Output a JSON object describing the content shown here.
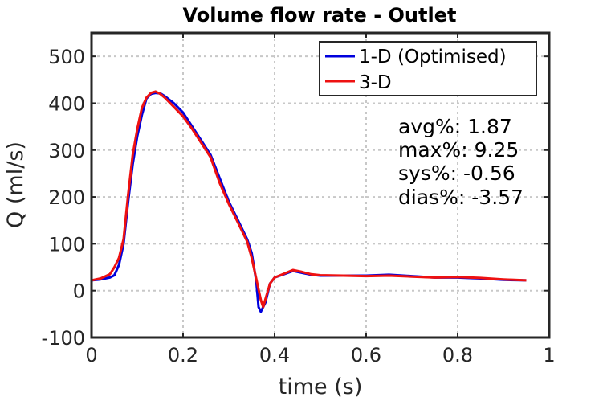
{
  "chart_data": {
    "type": "line",
    "title": "Volume flow rate - Outlet",
    "xlabel": "time (s)",
    "ylabel": "Q (ml/s)",
    "xlim": [
      0,
      1
    ],
    "ylim": [
      -100,
      550
    ],
    "xticks": [
      0,
      0.2,
      0.4,
      0.6,
      0.8,
      1
    ],
    "xtick_labels": [
      "0",
      "0.2",
      "0.4",
      "0.6",
      "0.8",
      "1"
    ],
    "yticks": [
      -100,
      0,
      100,
      200,
      300,
      400,
      500
    ],
    "ytick_labels": [
      "-100",
      "0",
      "100",
      "200",
      "300",
      "400",
      "500"
    ],
    "grid": true,
    "legend_position": "top-right",
    "series": [
      {
        "name": "1-D (Optimised)",
        "color": "#0000dd",
        "x": [
          0,
          0.02,
          0.04,
          0.05,
          0.06,
          0.07,
          0.08,
          0.09,
          0.1,
          0.11,
          0.12,
          0.13,
          0.14,
          0.15,
          0.16,
          0.18,
          0.2,
          0.22,
          0.24,
          0.26,
          0.28,
          0.3,
          0.32,
          0.34,
          0.35,
          0.36,
          0.365,
          0.37,
          0.38,
          0.39,
          0.4,
          0.42,
          0.44,
          0.46,
          0.48,
          0.5,
          0.55,
          0.6,
          0.65,
          0.7,
          0.75,
          0.8,
          0.85,
          0.9,
          0.95
        ],
        "y": [
          22,
          24,
          28,
          33,
          55,
          100,
          190,
          270,
          330,
          375,
          410,
          420,
          422,
          421,
          415,
          400,
          380,
          350,
          320,
          290,
          240,
          190,
          150,
          110,
          80,
          20,
          -35,
          -45,
          -25,
          15,
          28,
          35,
          42,
          38,
          34,
          32,
          32,
          32,
          34,
          31,
          28,
          28,
          26,
          23,
          22
        ]
      },
      {
        "name": "3-D",
        "color": "#ee1111",
        "x": [
          0,
          0.02,
          0.04,
          0.05,
          0.06,
          0.07,
          0.08,
          0.09,
          0.1,
          0.11,
          0.12,
          0.13,
          0.14,
          0.15,
          0.16,
          0.18,
          0.2,
          0.22,
          0.24,
          0.26,
          0.28,
          0.3,
          0.32,
          0.34,
          0.35,
          0.36,
          0.37,
          0.375,
          0.38,
          0.39,
          0.4,
          0.42,
          0.44,
          0.46,
          0.48,
          0.5,
          0.55,
          0.6,
          0.65,
          0.7,
          0.75,
          0.8,
          0.85,
          0.9,
          0.95
        ],
        "y": [
          22,
          26,
          35,
          50,
          70,
          110,
          205,
          290,
          345,
          390,
          412,
          422,
          425,
          420,
          412,
          392,
          372,
          345,
          315,
          285,
          230,
          185,
          145,
          105,
          70,
          25,
          -20,
          -35,
          -18,
          15,
          28,
          36,
          44,
          40,
          35,
          33,
          32,
          31,
          32,
          30,
          28,
          29,
          27,
          24,
          22
        ]
      }
    ],
    "annotations": [
      "avg%: 1.87",
      "max%: 9.25",
      "sys%: -0.56",
      "dias%: -3.57"
    ]
  }
}
